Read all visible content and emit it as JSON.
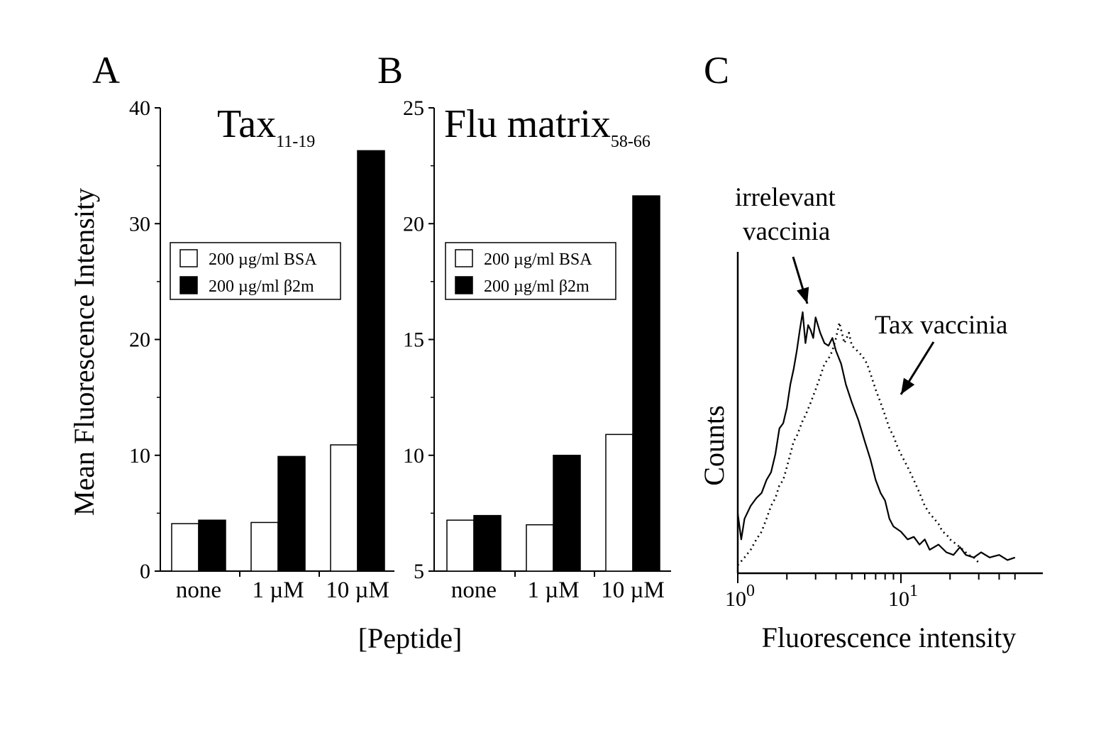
{
  "chart_data": [
    {
      "panel": "A",
      "type": "bar",
      "title": "Tax",
      "title_subscript": "11-19",
      "ylabel": "Mean Fluorescence Intensity",
      "ylim": [
        0,
        40
      ],
      "yticks": [
        0,
        10,
        20,
        30,
        40
      ],
      "categories": [
        "none",
        "1 µM",
        "10 µM"
      ],
      "series": [
        {
          "name": "200 µg/ml BSA",
          "color": "#ffffff",
          "values": [
            4.1,
            4.2,
            10.9
          ]
        },
        {
          "name": "200 µg/ml β2m",
          "color": "#000000",
          "values": [
            4.4,
            9.9,
            36.3
          ]
        }
      ],
      "legend": "middle-left"
    },
    {
      "panel": "B",
      "type": "bar",
      "title": "Flu matrix",
      "title_subscript": "58-66",
      "ylim": [
        5,
        25
      ],
      "yticks": [
        5,
        10,
        15,
        20,
        25
      ],
      "categories": [
        "none",
        "1 µM",
        "10 µM"
      ],
      "series": [
        {
          "name": "200 µg/ml BSA",
          "color": "#ffffff",
          "values": [
            7.2,
            7.0,
            10.9
          ]
        },
        {
          "name": "200 µg/ml β2m",
          "color": "#000000",
          "values": [
            7.4,
            10.0,
            21.2
          ]
        }
      ],
      "legend": "middle-left"
    },
    {
      "panel": "C",
      "type": "line",
      "xlabel": "Fluorescence intensity",
      "ylabel": "Counts",
      "xscale": "log",
      "xlim": [
        1,
        50
      ],
      "x_tick_labels": [
        {
          "base": "10",
          "exp": "0",
          "value": 1
        },
        {
          "base": "10",
          "exp": "1",
          "value": 10
        }
      ],
      "series": [
        {
          "label": "irrelevant vaccinia",
          "style": "solid",
          "x": [
            1.0,
            1.05,
            1.1,
            1.2,
            1.3,
            1.4,
            1.5,
            1.6,
            1.7,
            1.8,
            1.9,
            2.0,
            2.1,
            2.2,
            2.3,
            2.4,
            2.5,
            2.6,
            2.7,
            2.8,
            2.9,
            3.0,
            3.2,
            3.4,
            3.6,
            3.8,
            4.0,
            4.3,
            4.6,
            5.0,
            5.5,
            6.0,
            6.5,
            7.0,
            7.5,
            8.0,
            8.5,
            9.0,
            10,
            11,
            12,
            13,
            14,
            15,
            17,
            19,
            21,
            23,
            25,
            28,
            31,
            35,
            40,
            45,
            50
          ],
          "y": [
            0.22,
            0.12,
            0.2,
            0.25,
            0.28,
            0.3,
            0.35,
            0.38,
            0.45,
            0.55,
            0.57,
            0.63,
            0.72,
            0.78,
            0.85,
            0.93,
            1.0,
            0.88,
            0.95,
            0.93,
            0.9,
            0.98,
            0.92,
            0.88,
            0.87,
            0.9,
            0.85,
            0.8,
            0.72,
            0.65,
            0.58,
            0.5,
            0.43,
            0.35,
            0.3,
            0.27,
            0.2,
            0.17,
            0.15,
            0.12,
            0.13,
            0.1,
            0.12,
            0.08,
            0.1,
            0.07,
            0.06,
            0.09,
            0.06,
            0.05,
            0.07,
            0.05,
            0.06,
            0.04,
            0.05
          ]
        },
        {
          "label": "Tax vaccinia",
          "style": "dotted",
          "x": [
            1.0,
            1.1,
            1.2,
            1.3,
            1.4,
            1.5,
            1.6,
            1.7,
            1.8,
            1.9,
            2.0,
            2.1,
            2.2,
            2.3,
            2.4,
            2.5,
            2.6,
            2.8,
            3.0,
            3.2,
            3.4,
            3.6,
            3.8,
            4.0,
            4.2,
            4.5,
            4.8,
            5.0,
            5.4,
            5.8,
            6.2,
            6.6,
            7.0,
            7.5,
            8.0,
            8.5,
            9.0,
            9.5,
            10,
            11,
            12,
            13,
            14,
            15,
            16,
            17,
            18,
            19,
            20,
            22,
            24,
            26,
            28,
            30
          ],
          "y": [
            0.02,
            0.05,
            0.08,
            0.12,
            0.15,
            0.2,
            0.25,
            0.28,
            0.33,
            0.35,
            0.4,
            0.45,
            0.5,
            0.52,
            0.55,
            0.58,
            0.6,
            0.65,
            0.7,
            0.75,
            0.8,
            0.82,
            0.85,
            0.9,
            0.96,
            0.88,
            0.92,
            0.87,
            0.85,
            0.83,
            0.8,
            0.75,
            0.7,
            0.65,
            0.6,
            0.55,
            0.52,
            0.48,
            0.45,
            0.4,
            0.35,
            0.3,
            0.25,
            0.22,
            0.2,
            0.18,
            0.15,
            0.14,
            0.12,
            0.1,
            0.08,
            0.06,
            0.05,
            0.03
          ]
        }
      ]
    }
  ],
  "xaxis_shared_label": "[Peptide]"
}
